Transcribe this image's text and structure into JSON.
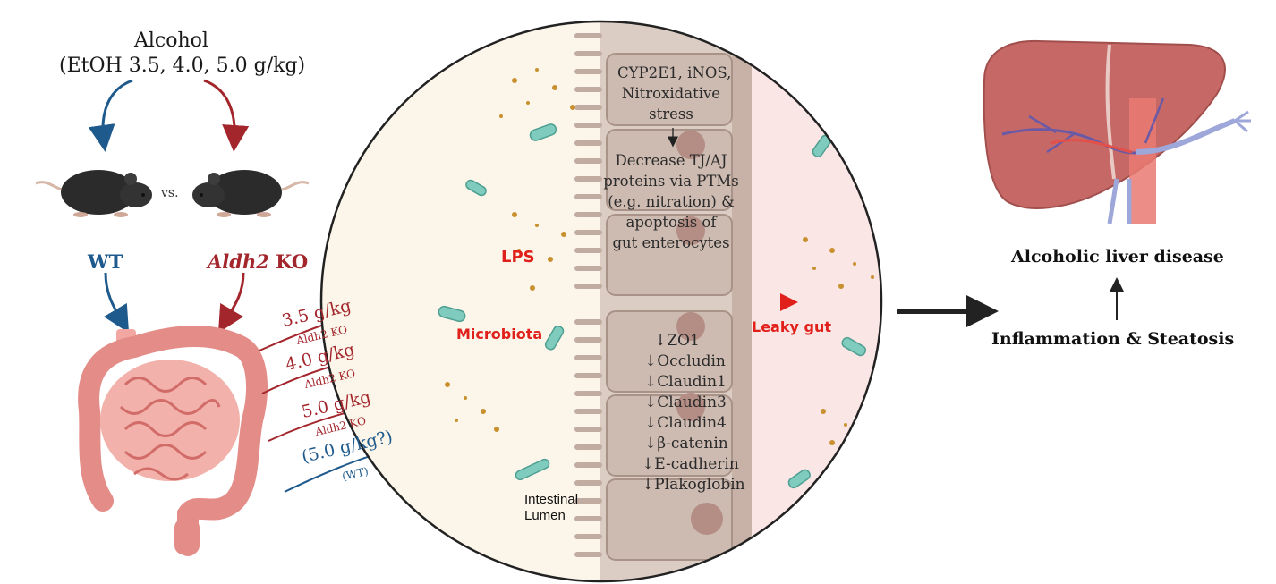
{
  "alcohol": {
    "title": "Alcohol",
    "doses": "(EtOH 3.5, 4.0, 5.0 g/kg)"
  },
  "mice": {
    "vs": "vs.",
    "wt_label": "WT",
    "ko_gene": "Aldh2",
    "ko_suffix": " KO"
  },
  "dose_arrows": [
    {
      "dose": "3.5 g/kg",
      "group": "Aldh2 KO",
      "color": "#a3262c"
    },
    {
      "dose": "4.0 g/kg",
      "group": "Aldh2 KO",
      "color": "#a3262c"
    },
    {
      "dose": "5.0 g/kg",
      "group": "Aldh2 KO",
      "color": "#a3262c"
    },
    {
      "dose": "(5.0 g/kg?)",
      "group": "(WT)",
      "color": "#1f5a8c"
    }
  ],
  "gut_view": {
    "upper_cell_text": [
      "CYP2E1, iNOS,",
      "Nitroxidative",
      "stress"
    ],
    "mechanism_text": [
      "Decrease TJ/AJ",
      "proteins via PTMs",
      "(e.g. nitration) &",
      "apoptosis of",
      "gut enterocytes"
    ],
    "lps_label": "LPS",
    "microbiota_label": "Microbiota",
    "leaky_gut_label": "Leaky gut",
    "lumen_label": [
      "Intestinal",
      "Lumen"
    ],
    "proteins": [
      "↓ZO1",
      "↓Occludin",
      "↓Claudin1",
      "↓Claudin3",
      "↓Claudin4",
      "↓β-catenin",
      "↓E-cadherin",
      "↓Plakoglobin"
    ]
  },
  "outcome": {
    "disease": "Alcoholic liver disease",
    "inflammation": "Inflammation & Steatosis"
  },
  "colors": {
    "wt_blue": "#1f5a8c",
    "ko_red": "#a3262c",
    "leak_red": "#e0201b",
    "lumen_bg": "#fbf6e9",
    "tissue_bg": "#fbe6e6"
  }
}
